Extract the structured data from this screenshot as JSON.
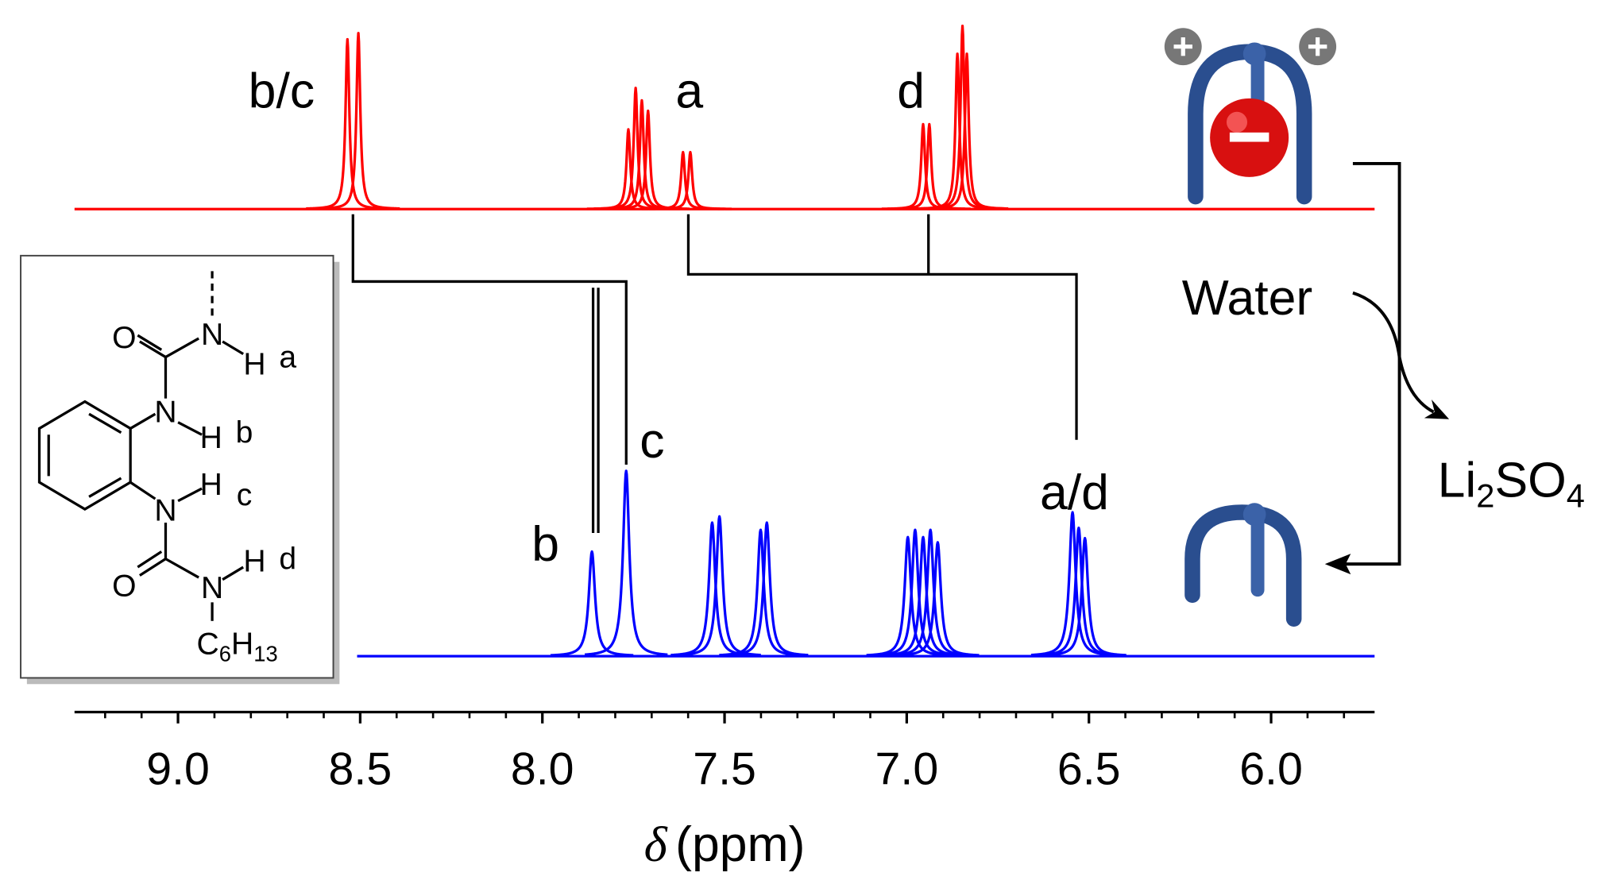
{
  "chart_data": {
    "type": "spectrum",
    "xlabel": {
      "symbol": "δ",
      "unit": "(ppm)"
    },
    "xlim": [
      9.284,
      5.716
    ],
    "xticks": [
      {
        "value": 9,
        "label": "9.0"
      },
      {
        "value": 8.5,
        "label": "8.5"
      },
      {
        "value": 8,
        "label": "8.0"
      },
      {
        "value": 7.5,
        "label": "7.5"
      },
      {
        "value": 7,
        "label": "7.0"
      },
      {
        "value": 6.5,
        "label": "6.5"
      },
      {
        "value": 6,
        "label": "6.0"
      }
    ],
    "xminorticks": [
      9.2,
      9.1,
      8.9,
      8.8,
      8.7,
      8.6,
      8.4,
      8.3,
      8.2,
      8.1,
      7.9,
      7.8,
      7.7,
      7.6,
      7.4,
      7.3,
      7.2,
      7.1,
      6.9,
      6.8,
      6.7,
      6.6,
      6.4,
      6.3,
      6.2,
      6.1,
      5.9,
      5.8
    ],
    "series": [
      {
        "color": "#ff0000",
        "x": [
          8.535,
          8.505,
          7.764,
          7.744,
          7.727,
          7.71,
          7.614,
          7.594,
          6.955,
          6.938,
          6.861,
          6.847,
          6.835
        ],
        "values": [
          164,
          170,
          77,
          117,
          105,
          95,
          55,
          55,
          82,
          82,
          150,
          177,
          150
        ]
      },
      {
        "color": "#0000ff",
        "x": [
          7.864,
          7.77,
          7.534,
          7.514,
          7.401,
          7.384,
          6.997,
          6.977,
          6.955,
          6.935,
          6.915,
          6.545,
          6.528,
          6.511
        ],
        "values": [
          101,
          179,
          129,
          135,
          122,
          129,
          115,
          122,
          115,
          122,
          110,
          139,
          124,
          114
        ]
      }
    ],
    "annotations": {
      "top": [
        "b/c",
        "a",
        "d"
      ],
      "bottom": [
        "c",
        "b",
        "a/d"
      ]
    },
    "process": {
      "step": "Water",
      "salt": [
        "Li",
        "2",
        "SO",
        "4"
      ]
    },
    "structure": {
      "O": "O",
      "N": "N",
      "H": "H",
      "protons": [
        "a",
        "b",
        "c",
        "d"
      ],
      "chain": [
        "C",
        "6",
        "H",
        "13"
      ]
    }
  }
}
